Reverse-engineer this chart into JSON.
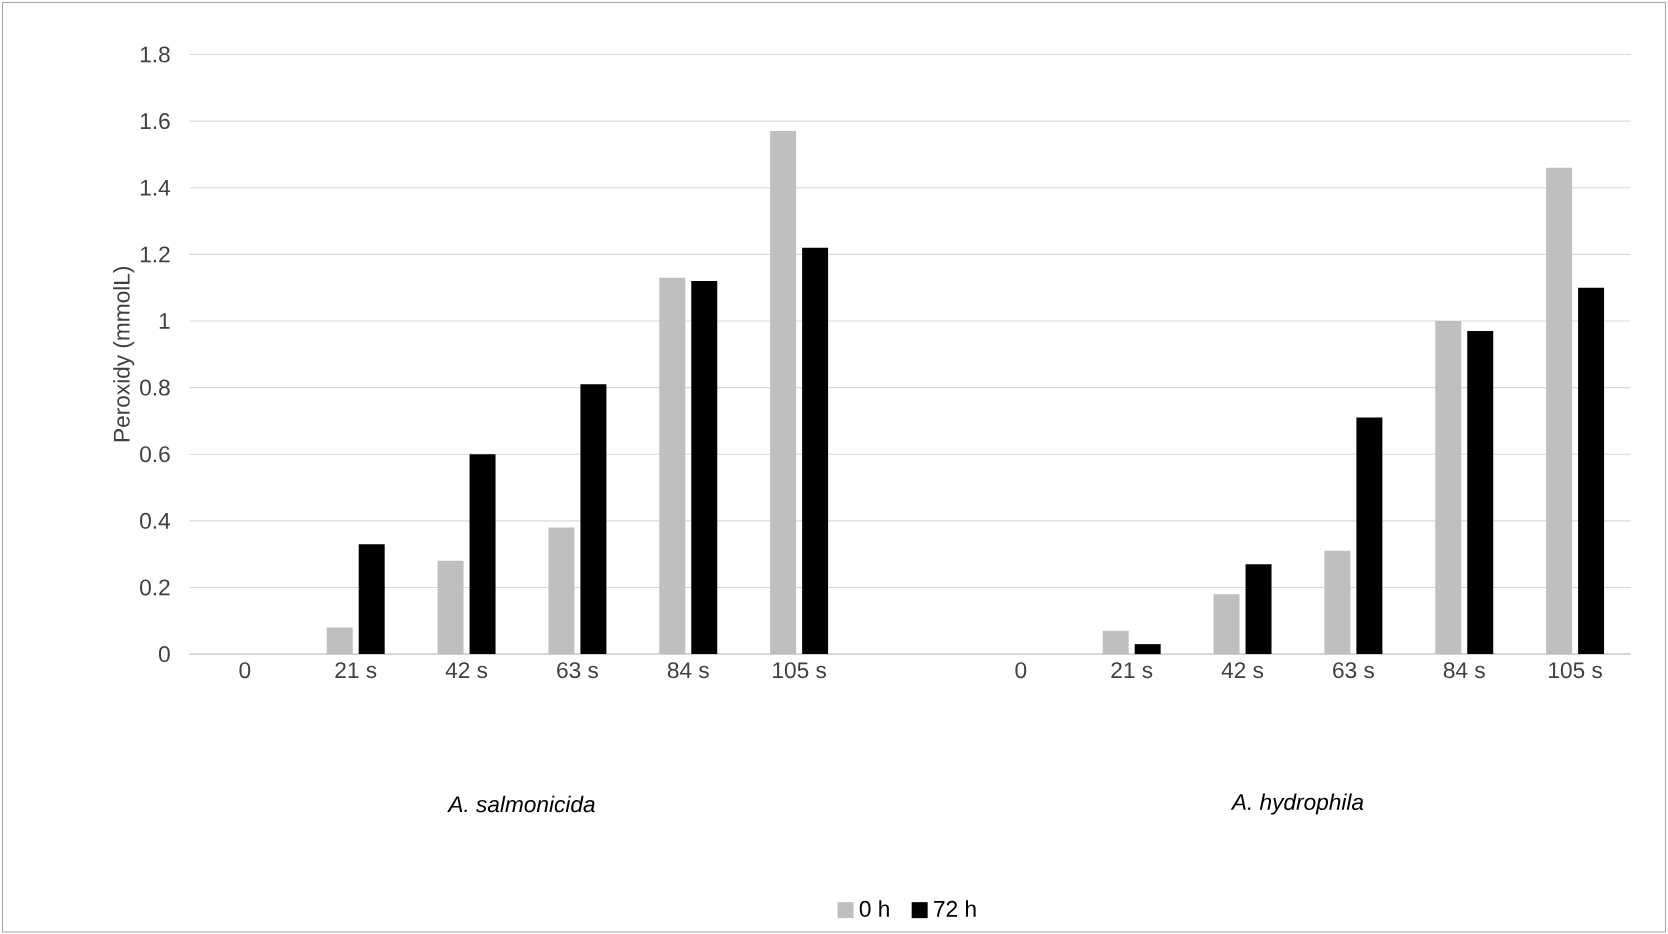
{
  "chart_data": {
    "type": "bar",
    "ylabel": "Peroxidy (mmolL)",
    "categories": [
      "0",
      "21 s",
      "42 s",
      "63 s",
      "84 s",
      "105 s",
      null,
      "0",
      "21 s",
      "42 s",
      "63 s",
      "84 s",
      "105 s"
    ],
    "series": [
      {
        "name": "0 h",
        "color": "#bfbfbf",
        "values": [
          0,
          0.08,
          0.28,
          0.38,
          1.13,
          1.57,
          null,
          0,
          0.07,
          0.18,
          0.31,
          1.0,
          1.46
        ]
      },
      {
        "name": "72 h",
        "color": "#000000",
        "values": [
          0,
          0.33,
          0.6,
          0.81,
          1.12,
          1.22,
          null,
          0,
          0.03,
          0.27,
          0.71,
          0.97,
          1.1
        ]
      }
    ],
    "annotations": [
      "A. salmonicida",
      "A. hydrophila"
    ],
    "ylim": [
      0,
      1.8
    ],
    "yticks": [
      0,
      0.2,
      0.4,
      0.6,
      0.8,
      1,
      1.2,
      1.4,
      1.6,
      1.8
    ],
    "grid": "y",
    "legend": "bottom"
  }
}
